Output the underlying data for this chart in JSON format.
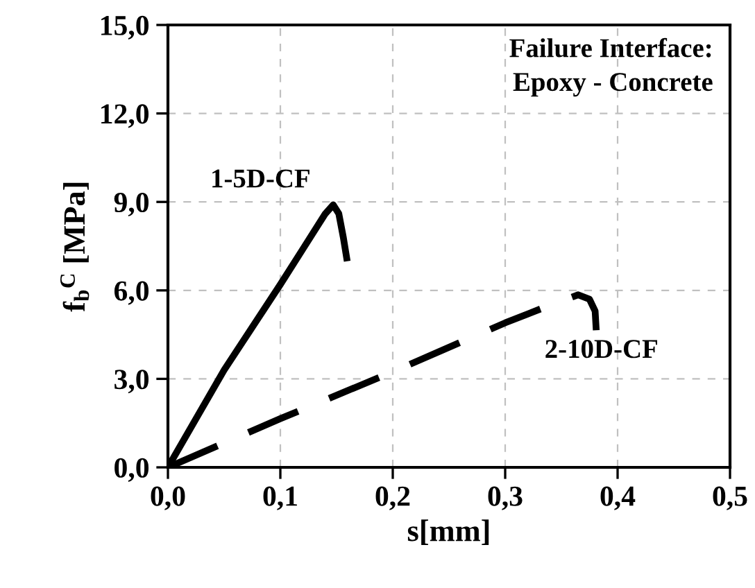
{
  "chart_data": {
    "type": "line",
    "xlabel": "s[mm]",
    "ylabel": "f$_{b}$$^{C}$ [MPa]",
    "annotations": [
      "Failure Interface:\nEpoxy - Concrete"
    ],
    "series": [
      {
        "name": "1-5D-CF",
        "color": "#000000",
        "line_style": "solid",
        "x": [
          0,
          0.05,
          0.1,
          0.12,
          0.14,
          0.147,
          0.152,
          0.156,
          0.159
        ],
        "values": [
          0,
          3.3,
          6.2,
          7.4,
          8.6,
          8.9,
          8.6,
          7.8,
          7.1
        ]
      },
      {
        "name": "2-10D-CF",
        "color": "#000000",
        "line_style": "dashed",
        "x": [
          0,
          0.1,
          0.2,
          0.3,
          0.34,
          0.365,
          0.375,
          0.38,
          0.381
        ],
        "values": [
          0,
          1.65,
          3.24,
          4.9,
          5.5,
          5.85,
          5.7,
          5.3,
          4.65
        ]
      }
    ],
    "xlim": [
      0,
      0.5
    ],
    "ylim": [
      0,
      15
    ],
    "xticks": [
      {
        "value": 0,
        "label": "0,0"
      },
      {
        "value": 0.1,
        "label": "0,1"
      },
      {
        "value": 0.2,
        "label": "0,2"
      },
      {
        "value": 0.3,
        "label": "0,3"
      },
      {
        "value": 0.4,
        "label": "0,4"
      },
      {
        "value": 0.5,
        "label": "0,5"
      }
    ],
    "yticks": [
      {
        "value": 0,
        "label": "0,0"
      },
      {
        "value": 3,
        "label": "3,0"
      },
      {
        "value": 6,
        "label": "6,0"
      },
      {
        "value": 9,
        "label": "9,0"
      },
      {
        "value": 12,
        "label": "12,0"
      },
      {
        "value": 15,
        "label": "15,0"
      }
    ],
    "grid": true,
    "legend": false,
    "marker": "none"
  }
}
